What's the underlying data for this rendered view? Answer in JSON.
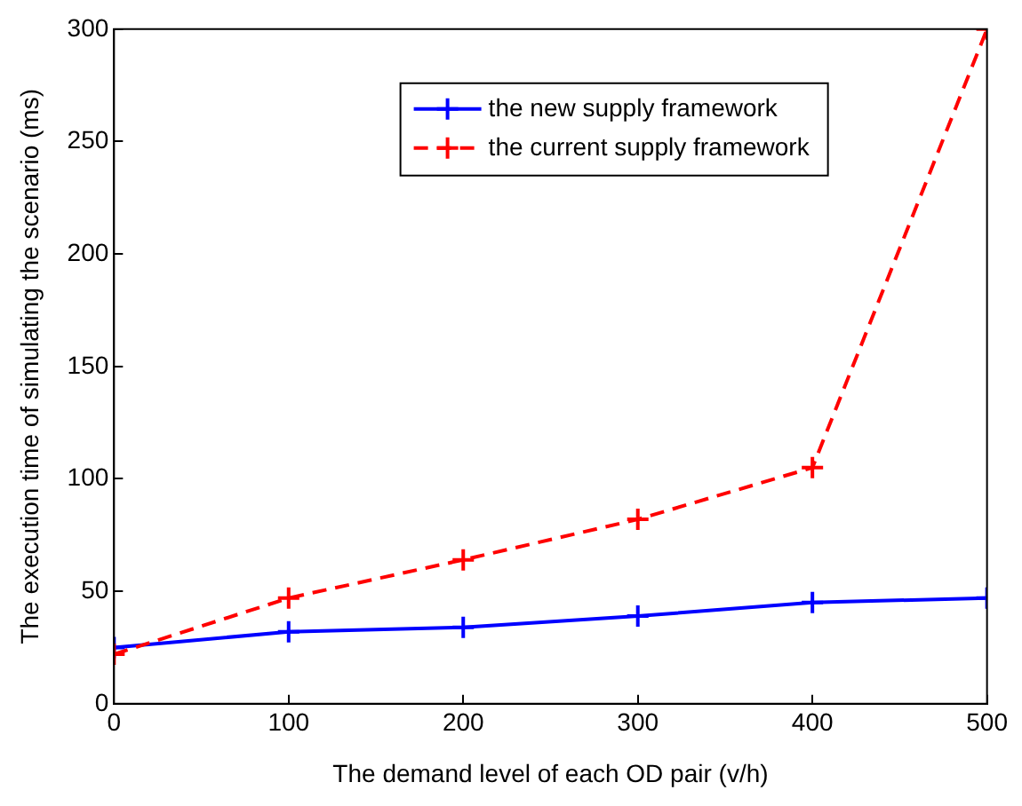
{
  "chart_data": {
    "type": "line",
    "xlabel": "The demand level of each OD pair (v/h)",
    "ylabel": "The execution time of simulating the scenario (ms)",
    "x": [
      0,
      100,
      200,
      300,
      400,
      500
    ],
    "series": [
      {
        "name": "the new supply framework",
        "color": "#0000ff",
        "values": [
          25,
          32,
          34,
          39,
          45,
          47
        ],
        "line_style": "solid"
      },
      {
        "name": "the current supply framework",
        "color": "#ff0000",
        "values": [
          22,
          47,
          64,
          82,
          105,
          300
        ],
        "line_style": "dashed"
      }
    ],
    "xlim": [
      0,
      500
    ],
    "xticks": [
      0,
      100,
      200,
      300,
      400,
      500
    ],
    "ylim": [
      0,
      300
    ],
    "yticks": [
      0,
      50,
      100,
      150,
      200,
      250,
      300
    ],
    "grid": false,
    "legend": "top right",
    "marker": "cross"
  }
}
